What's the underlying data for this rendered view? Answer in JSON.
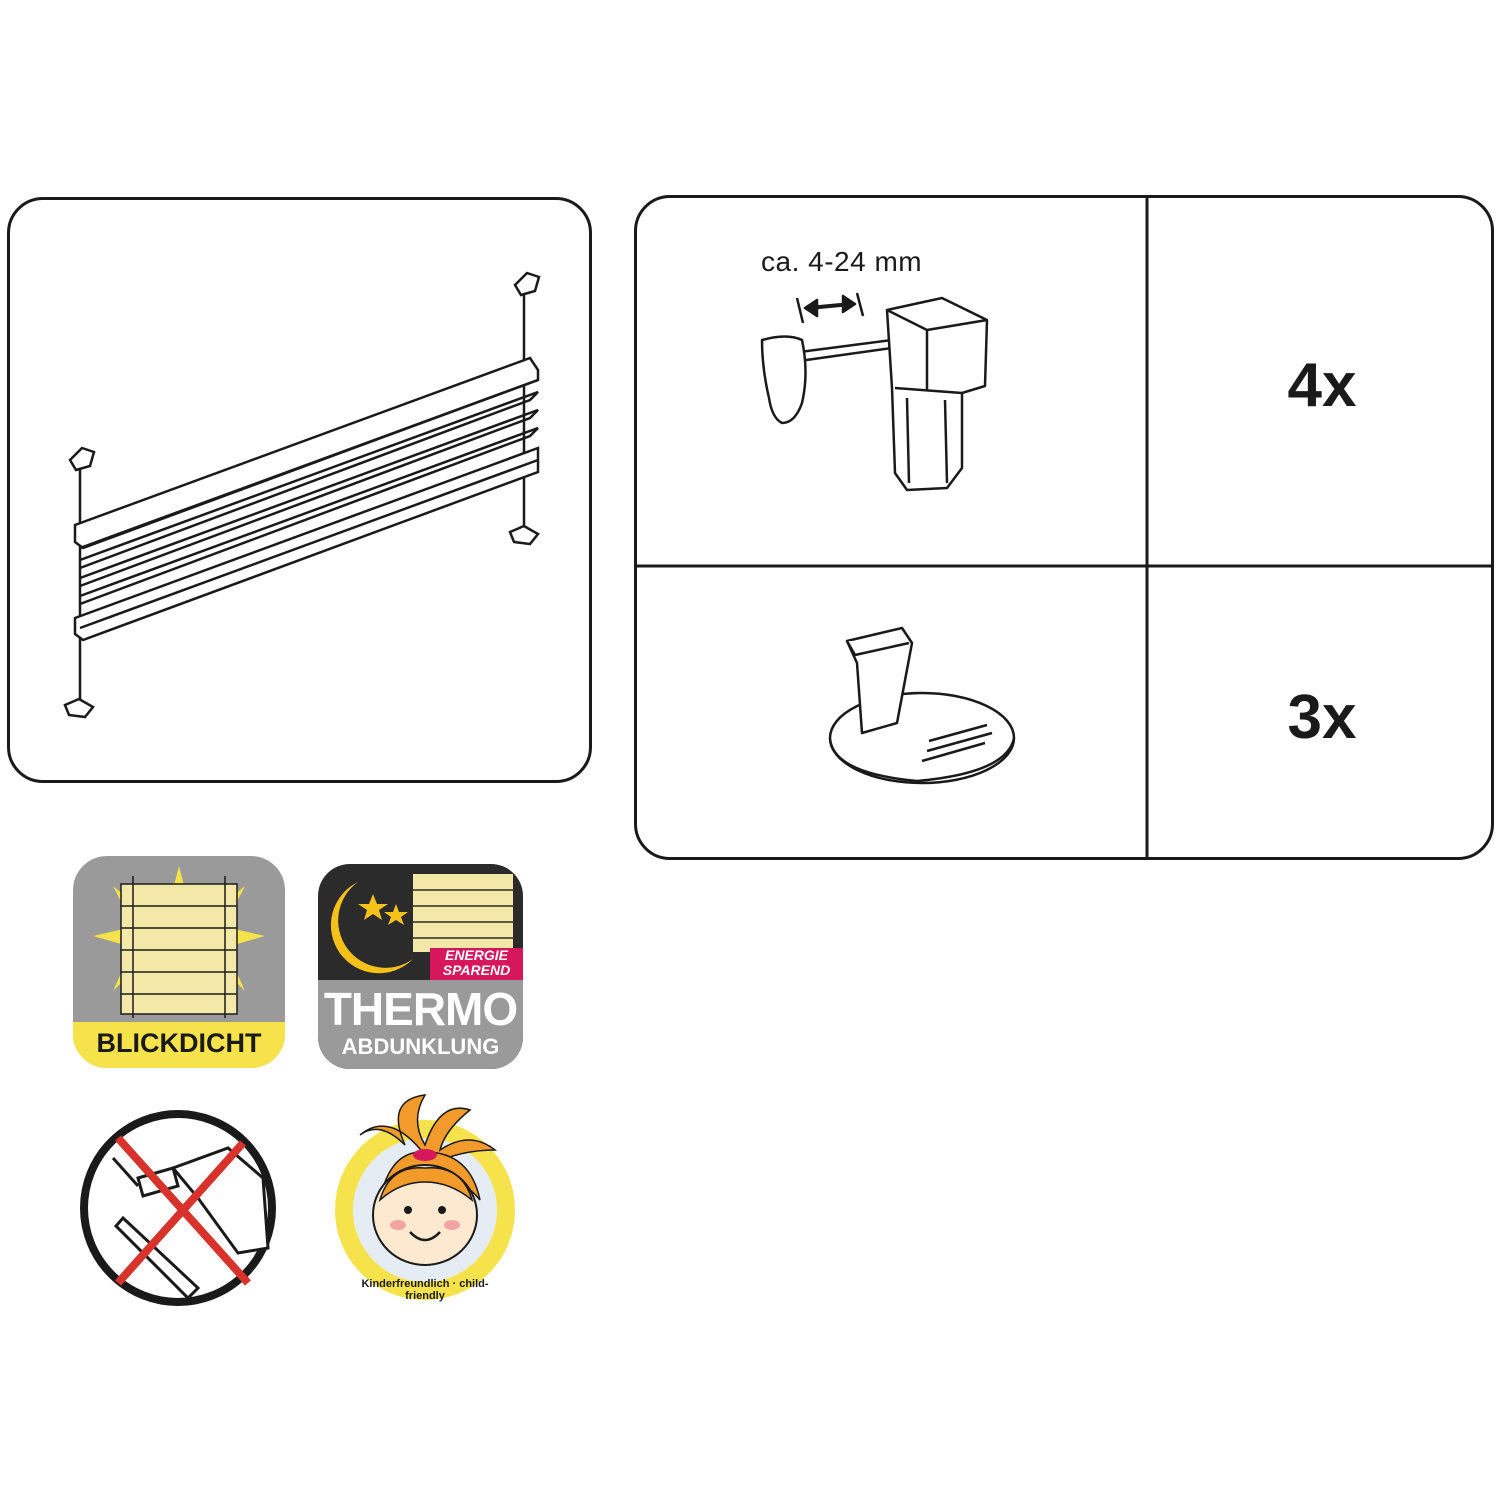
{
  "parts": [
    {
      "dimension_label": "ca. 4-24 mm",
      "quantity": "4x"
    },
    {
      "dimension_label": "",
      "quantity": "3x"
    }
  ],
  "badges": {
    "blickdicht": "BLICKDICHT",
    "energie_line1": "ENERGIE",
    "energie_line2": "SPAREND",
    "thermo": "THERMO",
    "abdunklung": "ABDUNKLUNG",
    "child_friendly": "Kinderfreundlich · child-friendly"
  },
  "colors": {
    "outline": "#1a1a1a",
    "badge_yellow": "#f6e24a",
    "pleat_cream": "#f3e8a8",
    "badge_gray": "#9a9a9a",
    "badge_dark": "#2b2b2b",
    "energie_pink": "#d6175c",
    "prohibition_red": "#d7332c"
  }
}
